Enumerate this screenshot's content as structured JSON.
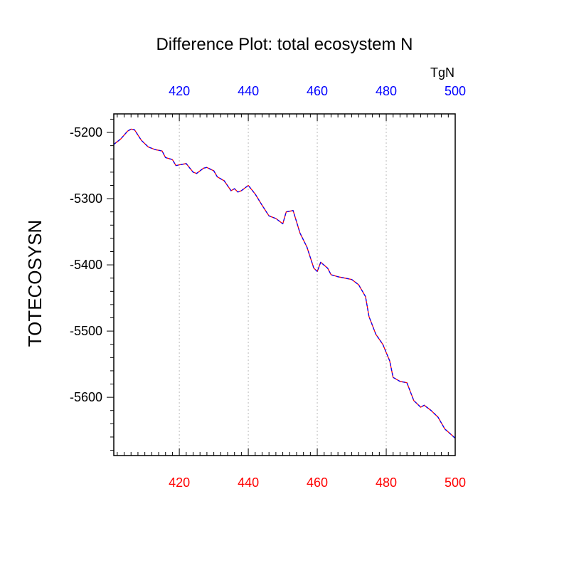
{
  "chart_data": {
    "type": "line",
    "title": "Difference Plot: total ecosystem N",
    "ylabel": "TOTECOSYSN",
    "units_label": "TgN",
    "xlim": [
      401,
      500
    ],
    "ylim": [
      -5688,
      -5172
    ],
    "x_ticks": [
      420,
      440,
      460,
      480,
      500
    ],
    "x_tick_labels": [
      "420",
      "440",
      "460",
      "480",
      "500"
    ],
    "y_ticks": [
      -5200,
      -5300,
      -5400,
      -5500,
      -5600
    ],
    "y_tick_labels": [
      "-5200",
      "-5300",
      "-5400",
      "-5500",
      "-5600"
    ],
    "grid": "vertical-dotted",
    "colors": {
      "bottom_ticks": "#ff0000",
      "top_ticks": "#0000ff",
      "line_solid": "#ff0000",
      "line_dashed": "#0000ff",
      "grid": "#bbbbbb"
    },
    "series": [
      {
        "x": [
          401,
          403,
          405,
          406,
          407,
          409,
          411,
          413,
          415,
          416,
          418,
          419,
          421,
          422,
          424,
          425,
          427,
          428,
          430,
          431,
          433,
          435,
          436,
          437,
          438,
          440,
          442,
          444,
          446,
          448,
          450,
          451,
          453,
          455,
          457,
          459,
          460,
          461,
          463,
          464,
          466,
          468,
          470,
          472,
          474,
          475,
          477,
          479,
          481,
          482,
          484,
          486,
          488,
          490,
          491,
          493,
          495,
          497,
          499,
          500
        ],
        "values": [
          -5218,
          -5210,
          -5198,
          -5195,
          -5196,
          -5212,
          -5222,
          -5226,
          -5228,
          -5238,
          -5241,
          -5250,
          -5248,
          -5247,
          -5260,
          -5262,
          -5254,
          -5253,
          -5258,
          -5267,
          -5273,
          -5288,
          -5285,
          -5290,
          -5288,
          -5280,
          -5293,
          -5310,
          -5326,
          -5330,
          -5338,
          -5320,
          -5318,
          -5352,
          -5373,
          -5405,
          -5410,
          -5396,
          -5405,
          -5415,
          -5418,
          -5420,
          -5422,
          -5430,
          -5448,
          -5478,
          -5505,
          -5520,
          -5545,
          -5570,
          -5576,
          -5578,
          -5605,
          -5615,
          -5612,
          -5620,
          -5630,
          -5648,
          -5657,
          -5662
        ]
      }
    ]
  }
}
